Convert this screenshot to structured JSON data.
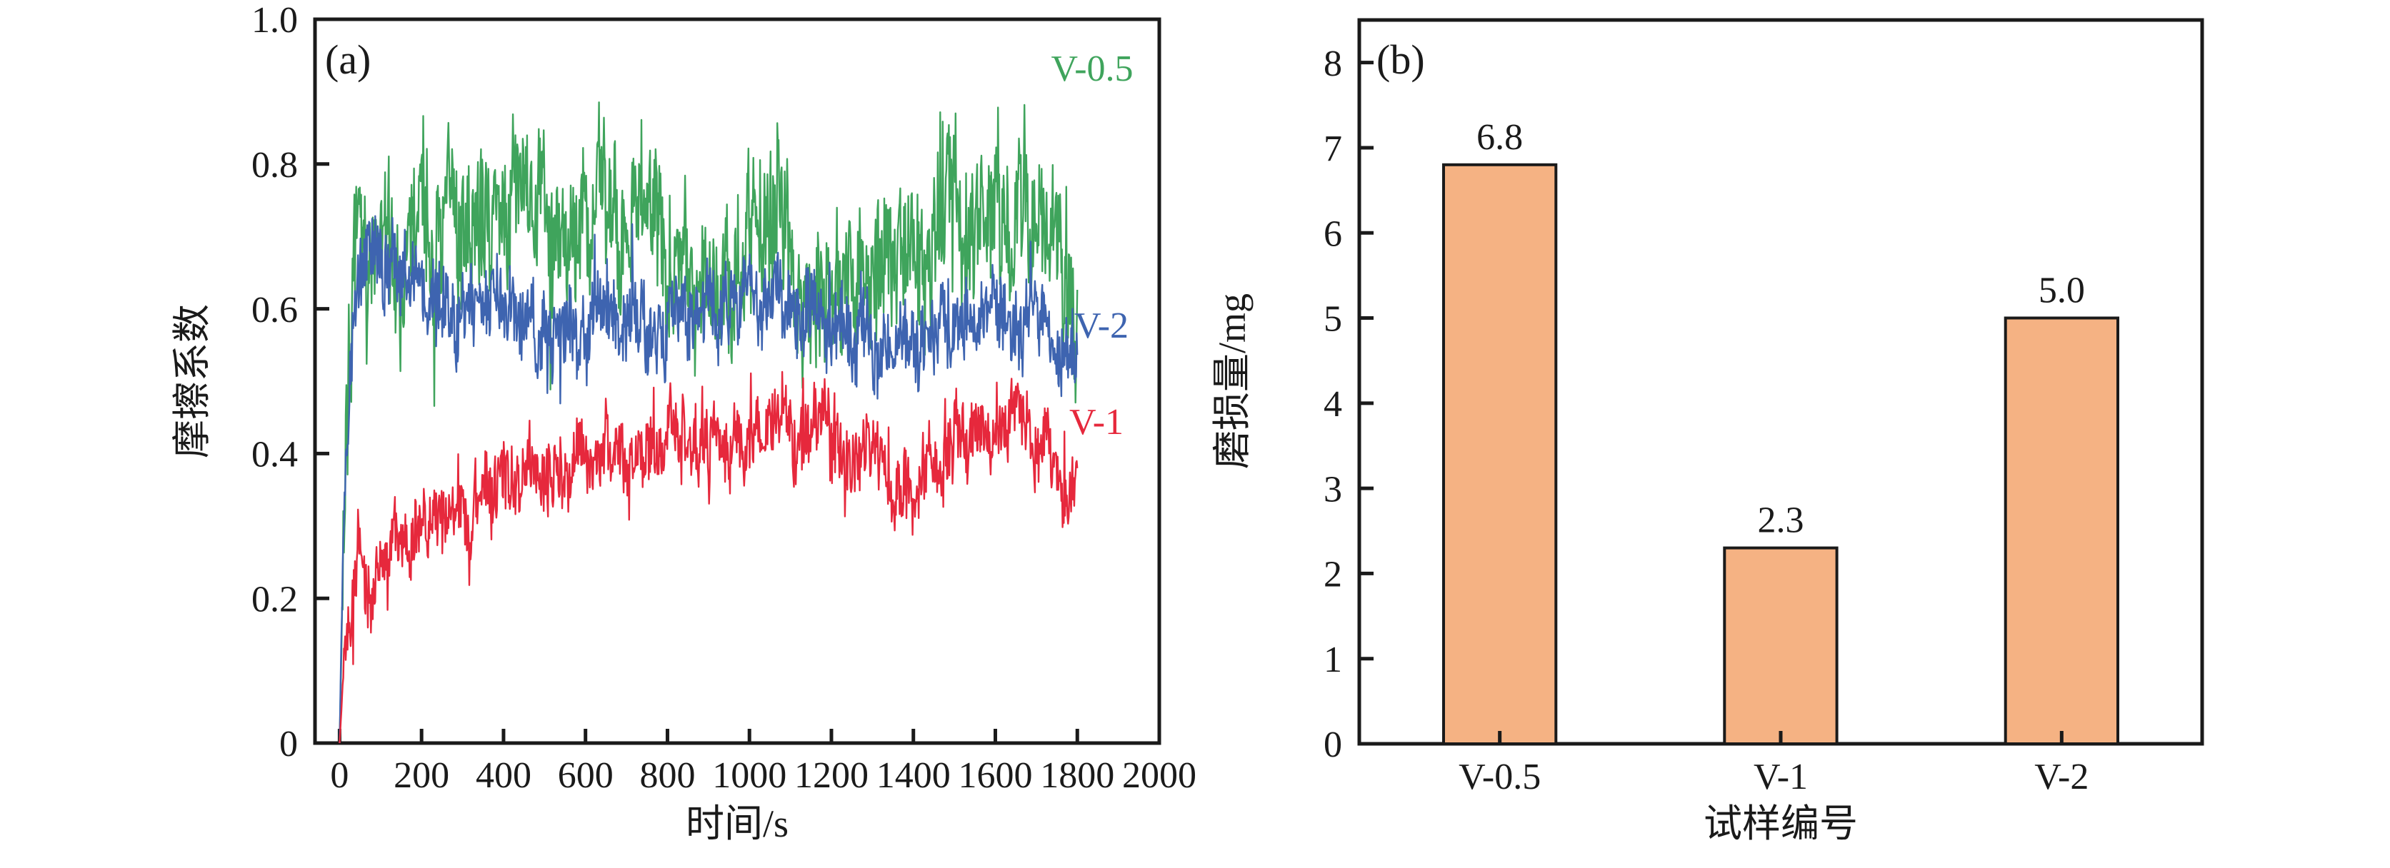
{
  "figure": {
    "background": "#ffffff",
    "axis_color": "#1a1a1a"
  },
  "chart_data": [
    {
      "type": "line",
      "panel": "(a)",
      "xlabel": "时间/s",
      "ylabel": "摩擦系数",
      "xlim": [
        0,
        2000
      ],
      "ylim": [
        0,
        1.0
      ],
      "x_major_ticks": [
        0,
        200,
        400,
        600,
        800,
        1000,
        1200,
        1400,
        1600,
        1800,
        2000
      ],
      "x_tick_labels": [
        "0",
        "200",
        "400",
        "600",
        "800",
        "1000",
        "1200",
        "1400",
        "1600",
        "1800",
        "2000"
      ],
      "y_major_ticks": [
        0,
        0.2,
        0.4,
        0.6,
        0.8,
        1.0
      ],
      "y_tick_labels": [
        "0",
        "0.2",
        "0.4",
        "0.6",
        "0.8",
        "1.0"
      ],
      "grid": false,
      "legend_position": "inline-right-labels",
      "series": [
        {
          "name": "V-0.5",
          "color": "#3FA45C",
          "x_start": 0,
          "x_end": 1800,
          "mean_level": 0.72,
          "noise": 0.105,
          "seed": 7,
          "profile": [
            [
              0,
              0
            ],
            [
              15,
              0.42
            ],
            [
              35,
              0.6
            ],
            [
              60,
              0.65
            ],
            [
              120,
              0.68
            ],
            [
              250,
              0.7
            ],
            [
              420,
              0.74
            ],
            [
              550,
              0.72
            ],
            [
              680,
              0.78
            ],
            [
              800,
              0.7
            ],
            [
              950,
              0.66
            ],
            [
              1050,
              0.72
            ],
            [
              1150,
              0.68
            ],
            [
              1250,
              0.63
            ],
            [
              1350,
              0.66
            ],
            [
              1450,
              0.72
            ],
            [
              1550,
              0.74
            ],
            [
              1650,
              0.72
            ],
            [
              1760,
              0.68
            ],
            [
              1800,
              0.55
            ]
          ]
        },
        {
          "name": "V-2",
          "color": "#3E64B0",
          "x_start": 0,
          "x_end": 1800,
          "mean_level": 0.59,
          "noise": 0.06,
          "seed": 13,
          "profile": [
            [
              0,
              0
            ],
            [
              12,
              0.4
            ],
            [
              30,
              0.56
            ],
            [
              60,
              0.66
            ],
            [
              95,
              0.7
            ],
            [
              150,
              0.66
            ],
            [
              220,
              0.62
            ],
            [
              350,
              0.6
            ],
            [
              500,
              0.57
            ],
            [
              650,
              0.58
            ],
            [
              800,
              0.59
            ],
            [
              950,
              0.6
            ],
            [
              1100,
              0.61
            ],
            [
              1250,
              0.58
            ],
            [
              1380,
              0.55
            ],
            [
              1500,
              0.59
            ],
            [
              1650,
              0.59
            ],
            [
              1760,
              0.56
            ],
            [
              1800,
              0.48
            ]
          ]
        },
        {
          "name": "V-1",
          "color": "#E6283C",
          "x_start": 0,
          "x_end": 1800,
          "mean_level": 0.4,
          "noise": 0.055,
          "seed": 21,
          "profile": [
            [
              0,
              0
            ],
            [
              10,
              0.1
            ],
            [
              25,
              0.16
            ],
            [
              45,
              0.28
            ],
            [
              80,
              0.18
            ],
            [
              120,
              0.27
            ],
            [
              160,
              0.3
            ],
            [
              250,
              0.31
            ],
            [
              350,
              0.33
            ],
            [
              450,
              0.36
            ],
            [
              550,
              0.37
            ],
            [
              650,
              0.39
            ],
            [
              750,
              0.41
            ],
            [
              850,
              0.41
            ],
            [
              950,
              0.43
            ],
            [
              1050,
              0.43
            ],
            [
              1150,
              0.44
            ],
            [
              1250,
              0.41
            ],
            [
              1330,
              0.36
            ],
            [
              1380,
              0.33
            ],
            [
              1450,
              0.39
            ],
            [
              1550,
              0.42
            ],
            [
              1650,
              0.46
            ],
            [
              1720,
              0.43
            ],
            [
              1780,
              0.34
            ],
            [
              1800,
              0.42
            ]
          ]
        }
      ]
    },
    {
      "type": "bar",
      "panel": "(b)",
      "xlabel": "试样编号",
      "ylabel": "磨损量/mg",
      "categories": [
        "V-0.5",
        "V-1",
        "V-2"
      ],
      "values": [
        6.8,
        2.3,
        5.0
      ],
      "value_labels": [
        "6.8",
        "2.3",
        "5.0"
      ],
      "ylim": [
        0,
        8.5
      ],
      "y_major_ticks": [
        0,
        1,
        2,
        3,
        4,
        5,
        6,
        7,
        8
      ],
      "y_tick_labels": [
        "0",
        "1",
        "2",
        "3",
        "4",
        "5",
        "6",
        "7",
        "8"
      ],
      "grid": false,
      "bar_color": "#F5B283",
      "bar_edge_color": "#1a1a1a",
      "bar_width_frac": 0.4
    }
  ]
}
